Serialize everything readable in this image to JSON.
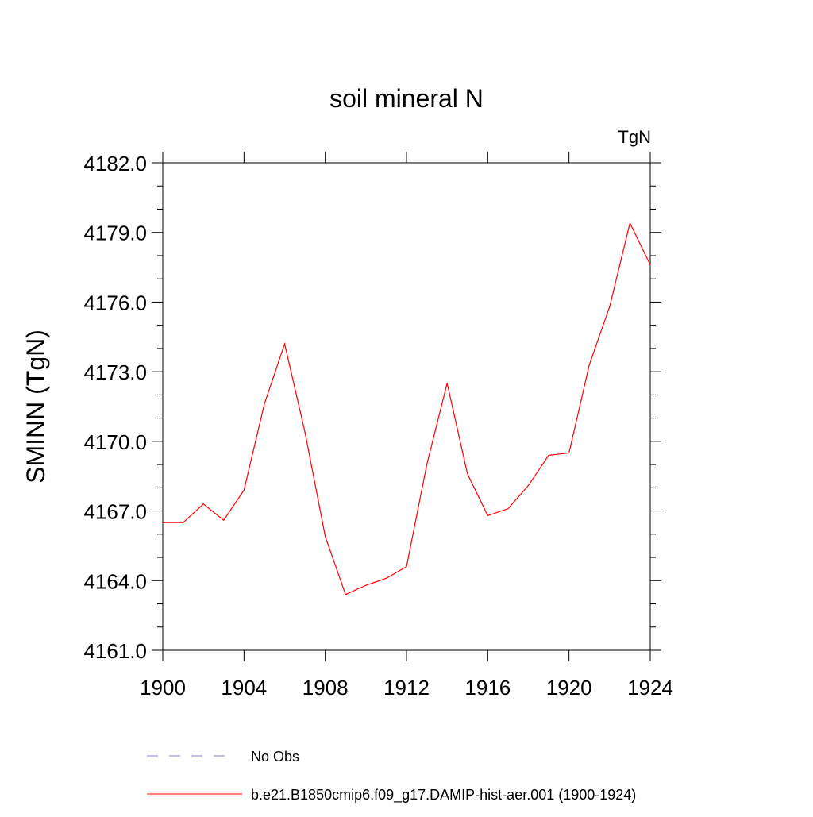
{
  "chart_data": {
    "type": "line",
    "title": "soil mineral N",
    "units": "TgN",
    "xlabel": "",
    "ylabel": "SMINN  (TgN)",
    "xlim": [
      1900,
      1924
    ],
    "ylim": [
      4161.0,
      4182.0
    ],
    "x_ticks": [
      1900,
      1904,
      1908,
      1912,
      1916,
      1920,
      1924
    ],
    "x_tick_labels": [
      "1900",
      "1904",
      "1908",
      "1912",
      "1916",
      "1920",
      "1924"
    ],
    "y_ticks": [
      4161.0,
      4164.0,
      4167.0,
      4170.0,
      4173.0,
      4176.0,
      4179.0,
      4182.0
    ],
    "y_tick_labels": [
      "4161.0",
      "4164.0",
      "4167.0",
      "4170.0",
      "4173.0",
      "4176.0",
      "4179.0",
      "4182.0"
    ],
    "grid": false,
    "legend_position": "bottom",
    "series": [
      {
        "name": "No Obs",
        "style": "dashed",
        "color": "#8080c8",
        "x": [],
        "values": []
      },
      {
        "name": "b.e21.B1850cmip6.f09_g17.DAMIP-hist-aer.001 (1900-1924)",
        "style": "solid",
        "color": "#ff0000",
        "x": [
          1900,
          1901,
          1902,
          1903,
          1904,
          1905,
          1906,
          1907,
          1908,
          1909,
          1910,
          1911,
          1912,
          1913,
          1914,
          1915,
          1916,
          1917,
          1918,
          1919,
          1920,
          1921,
          1922,
          1923,
          1924
        ],
        "values": [
          4166.5,
          4166.5,
          4167.3,
          4166.6,
          4167.9,
          4171.6,
          4174.2,
          4170.4,
          4165.9,
          4163.4,
          4163.8,
          4164.1,
          4164.6,
          4169.0,
          4172.5,
          4168.6,
          4166.8,
          4167.1,
          4168.1,
          4169.4,
          4169.5,
          4173.3,
          4175.8,
          4179.4,
          4177.6
        ]
      }
    ]
  }
}
